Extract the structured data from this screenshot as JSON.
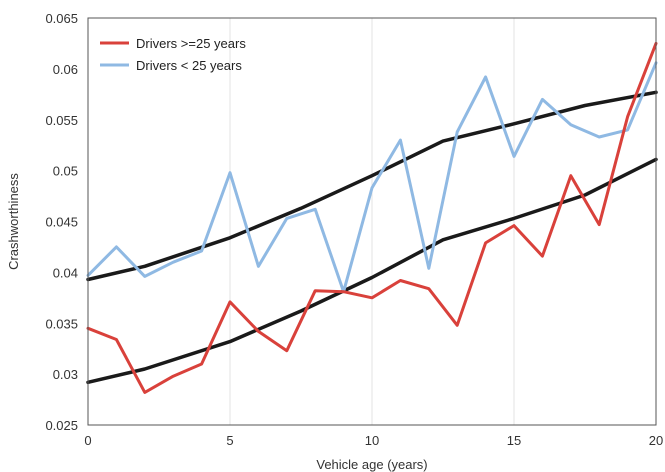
{
  "chart_data": {
    "type": "line",
    "xlabel": "Vehicle age (years)",
    "ylabel": "Crashworthiness",
    "xlim": [
      0,
      20
    ],
    "ylim": [
      0.025,
      0.065
    ],
    "x_ticks": [
      "0",
      "5",
      "10",
      "15",
      "20"
    ],
    "y_ticks": [
      "0.025",
      "0.03",
      "0.035",
      "0.04",
      "0.045",
      "0.05",
      "0.055",
      "0.06",
      "0.065"
    ],
    "grid": "vertical",
    "legend_position": "top-left",
    "x": [
      0,
      1,
      2,
      3,
      4,
      5,
      6,
      7,
      8,
      9,
      10,
      11,
      12,
      13,
      14,
      15,
      16,
      17,
      18,
      19,
      20
    ],
    "series": [
      {
        "name": "Drivers >=25 years",
        "color": "#d9413b",
        "values": [
          0.0345,
          0.0334,
          0.0282,
          0.0298,
          0.031,
          0.0371,
          0.0342,
          0.0323,
          0.0382,
          0.0381,
          0.0375,
          0.0392,
          0.0384,
          0.0348,
          0.0429,
          0.0446,
          0.0416,
          0.0495,
          0.0447,
          0.0553,
          0.0625
        ]
      },
      {
        "name": "Drivers < 25 years",
        "color": "#8fb9e3",
        "values": [
          0.0397,
          0.0425,
          0.0396,
          0.041,
          0.0421,
          0.0498,
          0.0406,
          0.0453,
          0.0462,
          0.0381,
          0.0483,
          0.053,
          0.0404,
          0.0538,
          0.0592,
          0.0514,
          0.057,
          0.0545,
          0.0533,
          0.054,
          0.0606
        ]
      }
    ],
    "trend_lines": [
      {
        "color": "#1a1a1a",
        "values": [
          0.0393,
          0.0406,
          0.0434,
          0.0463,
          0.0495,
          0.0529,
          0.0546,
          0.0564,
          0.0577
        ]
      },
      {
        "color": "#1a1a1a",
        "values": [
          0.0292,
          0.0305,
          0.0332,
          0.0362,
          0.0395,
          0.0432,
          0.0453,
          0.0476,
          0.0511
        ]
      }
    ],
    "trend_x": [
      0,
      2,
      5,
      7.5,
      10,
      12.5,
      15,
      17.5,
      20
    ]
  }
}
